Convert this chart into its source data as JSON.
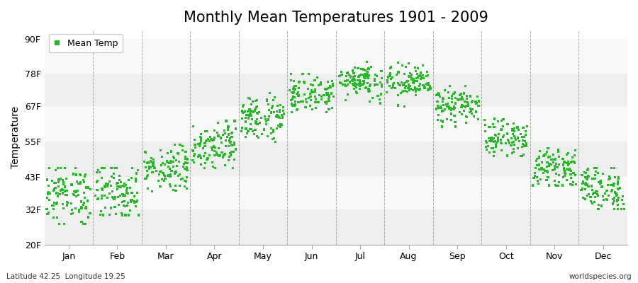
{
  "title": "Monthly Mean Temperatures 1901 - 2009",
  "ylabel": "Temperature",
  "legend_label": "Mean Temp",
  "subtitle_left": "Latitude 42.25  Longitude 19.25",
  "subtitle_right": "worldspecies.org",
  "yticks": [
    20,
    32,
    43,
    55,
    67,
    78,
    90
  ],
  "ytick_labels": [
    "20F",
    "32F",
    "43F",
    "55F",
    "67F",
    "78F",
    "90F"
  ],
  "ylim": [
    20,
    93
  ],
  "xlim": [
    0.0,
    12.0
  ],
  "months": [
    "Jan",
    "Feb",
    "Mar",
    "Apr",
    "May",
    "Jun",
    "Jul",
    "Aug",
    "Sep",
    "Oct",
    "Nov",
    "Dec"
  ],
  "month_tick_positions": [
    0.5,
    1.5,
    2.5,
    3.5,
    4.5,
    5.5,
    6.5,
    7.5,
    8.5,
    9.5,
    10.5,
    11.5
  ],
  "vline_positions": [
    1.0,
    2.0,
    3.0,
    4.0,
    5.0,
    6.0,
    7.0,
    8.0,
    9.0,
    10.0,
    11.0
  ],
  "marker_color": "#22bb22",
  "marker_size": 5,
  "background_color": "#ffffff",
  "band_colors_odd": "#eeeeee",
  "band_colors_even": "#f8f8f8",
  "grid_color": "#888888",
  "title_fontsize": 15,
  "axis_fontsize": 10,
  "tick_fontsize": 9,
  "month_means": [
    37,
    38,
    46,
    54,
    63,
    71,
    76,
    75,
    67,
    56,
    46,
    39
  ],
  "month_stds": [
    5,
    5,
    4,
    4,
    4,
    3,
    3,
    3,
    3,
    3,
    3,
    4
  ],
  "month_mins": [
    27,
    30,
    38,
    46,
    55,
    65,
    68,
    67,
    60,
    50,
    40,
    32
  ],
  "month_maxs": [
    46,
    46,
    54,
    62,
    72,
    78,
    83,
    82,
    74,
    63,
    53,
    46
  ],
  "n_years": 109
}
